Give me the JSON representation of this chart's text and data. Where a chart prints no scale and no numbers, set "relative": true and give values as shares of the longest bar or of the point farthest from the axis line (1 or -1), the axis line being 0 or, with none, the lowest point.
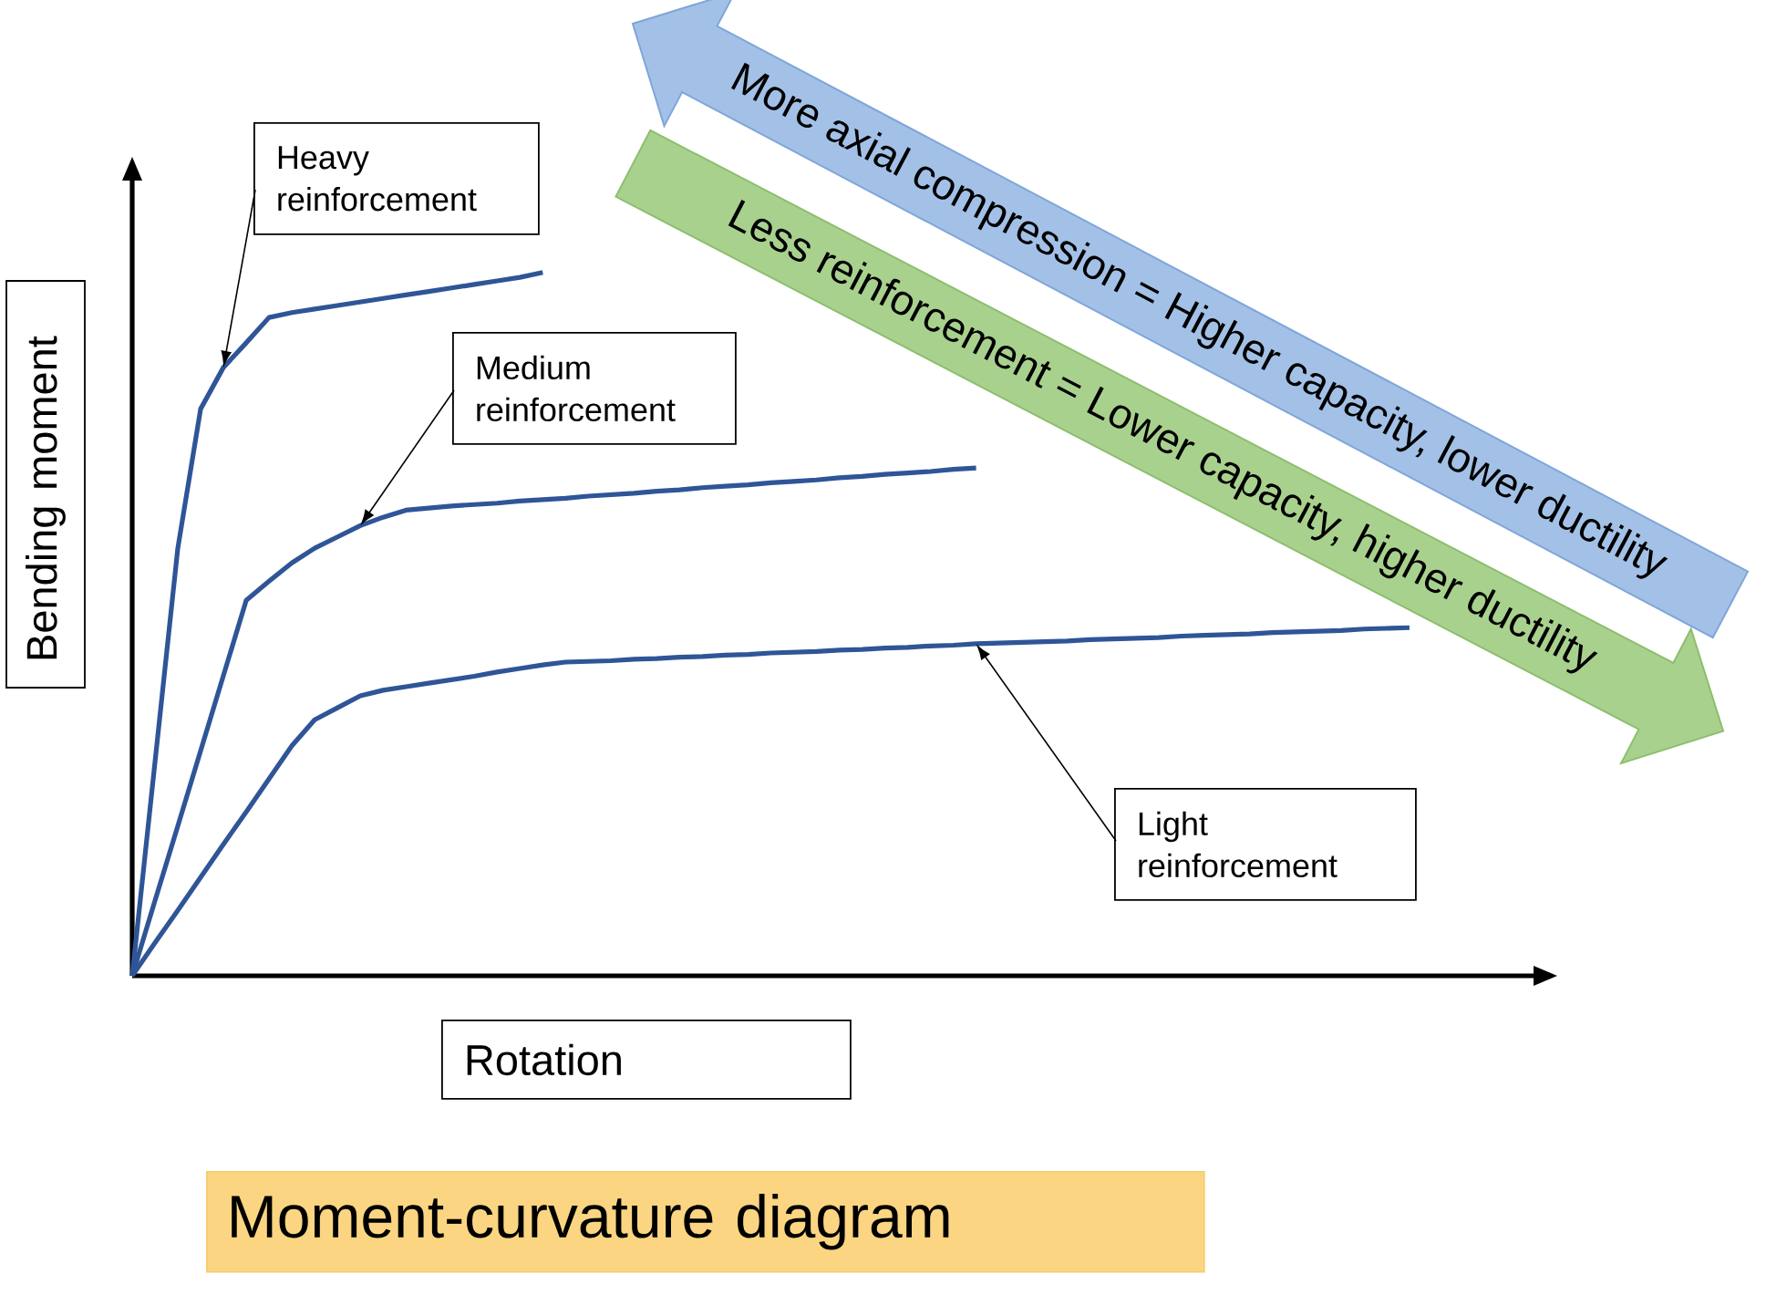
{
  "chart_data": {
    "type": "line",
    "title": "Moment-curvature diagram",
    "xlabel": "Rotation",
    "ylabel": "Bending moment",
    "relative": true,
    "tick_labels": false,
    "categories": [
      null,
      null,
      null,
      null,
      null,
      null,
      null,
      null,
      null,
      null,
      null,
      null,
      null,
      null,
      null,
      null,
      null,
      null,
      null,
      null,
      null,
      null,
      null,
      null,
      null,
      null,
      null,
      null,
      null,
      null,
      null,
      null,
      null,
      null,
      null,
      null,
      null,
      null,
      null,
      null,
      null,
      null,
      null,
      null,
      null,
      null,
      null,
      null,
      null,
      null,
      null,
      null,
      null,
      null,
      null,
      null,
      null
    ],
    "series": [
      {
        "color": "#2f5597",
        "values": [
          0,
          0.304,
          0.608,
          0.806,
          0.865,
          0.9,
          0.936,
          0.943,
          0.948,
          0.953,
          0.958,
          0.963,
          0.968,
          0.973,
          0.978,
          0.983,
          0.988,
          0.993,
          1,
          null,
          null,
          null,
          null,
          null,
          null,
          null,
          null,
          null,
          null,
          null,
          null,
          null,
          null,
          null,
          null,
          null,
          null,
          null,
          null,
          null,
          null,
          null,
          null,
          null,
          null,
          null,
          null,
          null,
          null,
          null,
          null,
          null,
          null,
          null,
          null,
          null,
          null
        ]
      },
      {
        "color": "#2f5597",
        "values": [
          0,
          0.107,
          0.213,
          0.32,
          0.427,
          0.534,
          0.561,
          0.587,
          0.608,
          0.624,
          0.64,
          0.652,
          0.662,
          0.665,
          0.668,
          0.67,
          0.672,
          0.675,
          0.677,
          0.679,
          0.682,
          0.684,
          0.686,
          0.689,
          0.691,
          0.694,
          0.696,
          0.698,
          0.701,
          0.703,
          0.705,
          0.708,
          0.71,
          0.713,
          0.715,
          0.717,
          0.72,
          0.722,
          null,
          null,
          null,
          null,
          null,
          null,
          null,
          null,
          null,
          null,
          null,
          null,
          null,
          null,
          null,
          null,
          null,
          null,
          null
        ]
      },
      {
        "color": "#2f5597",
        "values": [
          0,
          0.047,
          0.093,
          0.14,
          0.187,
          0.233,
          0.28,
          0.327,
          0.364,
          0.381,
          0.398,
          0.406,
          0.411,
          0.416,
          0.421,
          0.426,
          0.432,
          0.437,
          0.442,
          0.446,
          0.447,
          0.448,
          0.45,
          0.451,
          0.453,
          0.454,
          0.456,
          0.457,
          0.459,
          0.46,
          0.461,
          0.463,
          0.464,
          0.466,
          0.467,
          0.469,
          0.47,
          0.472,
          0.473,
          0.474,
          0.475,
          0.476,
          0.478,
          0.479,
          0.48,
          0.481,
          0.483,
          0.484,
          0.485,
          0.486,
          0.488,
          0.489,
          0.49,
          0.491,
          0.493,
          0.494,
          0.495
        ]
      }
    ],
    "annotations": [
      "Heavy reinforcement",
      "More axial compression = Higher capacity, lower ductility",
      "Less reinforcement = Lower capacity, higher ductility",
      "Medium reinforcement",
      "Light reinforcement"
    ]
  }
}
